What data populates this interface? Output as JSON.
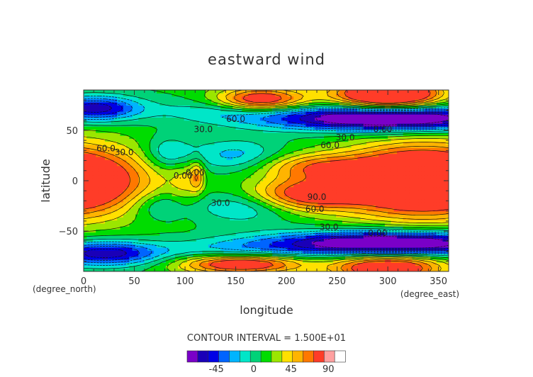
{
  "chart_data": {
    "type": "heatmap",
    "title": "eastward wind",
    "xlabel": "longitude",
    "ylabel": "latitude",
    "x_unit": "(degree_east)",
    "y_unit": "(degree_north)",
    "xlim": [
      0,
      360
    ],
    "ylim": [
      -90,
      90
    ],
    "x_ticks": [
      0,
      50,
      100,
      150,
      200,
      250,
      300,
      350
    ],
    "y_ticks": [
      -50,
      0,
      50
    ],
    "contour_interval_text": "CONTOUR INTERVAL = 1.500E+01",
    "colorbar": {
      "levels": [
        -67.5,
        -52.5,
        -37.5,
        -22.5,
        -7.5,
        7.5,
        22.5,
        37.5,
        52.5,
        67.5,
        82.5,
        97.5
      ],
      "colors": [
        "#7a00c8",
        "#1a00b8",
        "#0000e6",
        "#0064ff",
        "#00b4ff",
        "#00e6c8",
        "#00d278",
        "#00dc00",
        "#9be600",
        "#ffe000",
        "#ffb400",
        "#ff7800",
        "#ff3c28",
        "#ffa0a0",
        "#ffffff"
      ],
      "tick_values": [
        -45,
        0,
        45,
        90
      ],
      "tick_labels": [
        "-45",
        "0",
        "45",
        "90"
      ]
    },
    "contour_labels": [
      {
        "text": "60.0",
        "lon": 150,
        "lat": 61
      },
      {
        "text": "30.0",
        "lon": 118,
        "lat": 51
      },
      {
        "text": "0.00",
        "lon": 295,
        "lat": 51
      },
      {
        "text": "30.0",
        "lon": 258,
        "lat": 43
      },
      {
        "text": "60.0",
        "lon": 243,
        "lat": 35
      },
      {
        "text": "60.0",
        "lon": 22,
        "lat": 32
      },
      {
        "text": "30.0",
        "lon": 40,
        "lat": 28
      },
      {
        "text": "0.00",
        "lon": 98,
        "lat": 5
      },
      {
        "text": "0.00",
        "lon": 110,
        "lat": 8
      },
      {
        "text": "90.0",
        "lon": 230,
        "lat": -16
      },
      {
        "text": "60.0",
        "lon": 228,
        "lat": -28
      },
      {
        "text": "30.0",
        "lon": 135,
        "lat": -22
      },
      {
        "text": "30.0",
        "lon": 242,
        "lat": -46
      },
      {
        "text": "0.00",
        "lon": 290,
        "lat": -52
      }
    ]
  }
}
